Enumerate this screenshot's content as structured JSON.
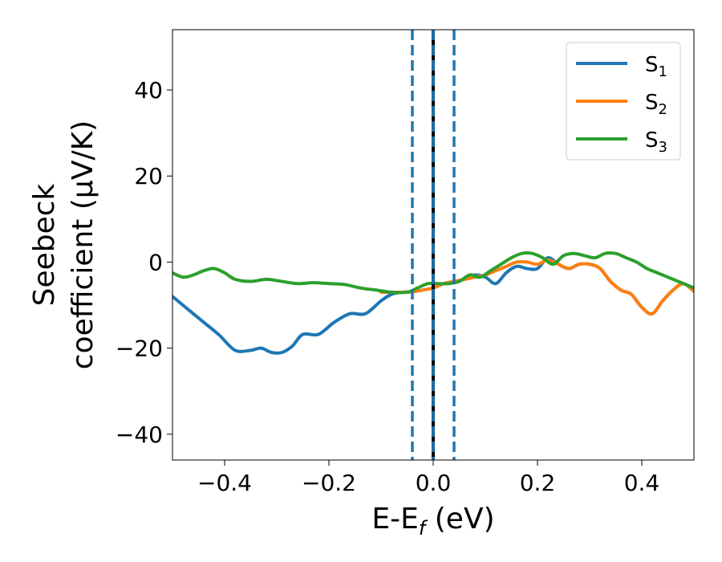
{
  "chart_data": {
    "type": "line",
    "xlabel": {
      "main": "E-E",
      "sub": "f",
      "unit": " (eV)"
    },
    "ylabel": {
      "line1": "Seebeck",
      "line2": "coefficient  (μV/K)"
    },
    "xlim": [
      -0.5,
      0.5
    ],
    "ylim": [
      -46,
      54
    ],
    "xticks": [
      -0.4,
      -0.2,
      0.0,
      0.2,
      0.4
    ],
    "xtick_labels": [
      "−0.4",
      "−0.2",
      "0.0",
      "0.2",
      "0.4"
    ],
    "yticks": [
      -40,
      -20,
      0,
      20,
      40
    ],
    "ytick_labels": [
      "−40",
      "−20",
      "0",
      "20",
      "40"
    ],
    "grid": false,
    "legend_position": "top-right",
    "vlines": [
      {
        "x": -0.04,
        "style": "dashed",
        "color": "#1f77b4"
      },
      {
        "x": 0.0,
        "style": "solid",
        "color": "#000000"
      },
      {
        "x": 0.0,
        "style": "dashed",
        "color": "#1f77b4"
      },
      {
        "x": 0.04,
        "style": "dashed",
        "color": "#1f77b4"
      }
    ],
    "series": [
      {
        "name": "S",
        "subscript": "1",
        "color": "#1f77b4",
        "x": [
          -0.5,
          -0.47,
          -0.44,
          -0.41,
          -0.38,
          -0.35,
          -0.33,
          -0.31,
          -0.29,
          -0.27,
          -0.25,
          -0.22,
          -0.19,
          -0.16,
          -0.13,
          -0.1,
          -0.08,
          -0.06,
          -0.04,
          -0.02,
          0.0,
          0.02,
          0.04,
          0.06,
          0.08,
          0.1,
          0.12,
          0.14,
          0.16,
          0.18,
          0.2,
          0.22,
          0.24,
          0.26,
          0.28,
          0.3,
          0.32,
          0.34,
          0.36,
          0.38,
          0.4,
          0.42,
          0.44,
          0.46,
          0.48,
          0.5
        ],
        "y": [
          -8.0,
          -11.0,
          -14.0,
          -17.0,
          -20.5,
          -20.5,
          -20.0,
          -21.0,
          -21.0,
          -19.5,
          -16.8,
          -16.8,
          -14.0,
          -12.0,
          -12.0,
          -9.0,
          -7.5,
          -7.0,
          -6.9,
          -6.5,
          -6.0,
          -5.0,
          -4.5,
          -4.0,
          -3.0,
          -3.5,
          -5.0,
          -2.5,
          -1.0,
          -1.5,
          -1.5,
          1.0,
          -0.5,
          -1.5,
          -0.5,
          -0.5,
          -1.5,
          -4.5,
          -6.5,
          -7.5,
          -10.5,
          -12.0,
          -9.0,
          -6.5,
          -5.0,
          -6.8
        ]
      },
      {
        "name": "S",
        "subscript": "2",
        "color": "#ff7f0e",
        "x": [
          -0.1,
          -0.08,
          -0.06,
          -0.04,
          -0.02,
          0.0,
          0.02,
          0.04,
          0.06,
          0.08,
          0.1,
          0.12,
          0.14,
          0.16,
          0.18,
          0.2,
          0.22,
          0.24,
          0.26,
          0.28,
          0.3,
          0.32,
          0.34,
          0.36,
          0.38,
          0.4,
          0.42,
          0.44,
          0.46,
          0.48,
          0.5
        ],
        "y": [
          -7.0,
          -7.0,
          -7.0,
          -6.9,
          -6.5,
          -6.0,
          -5.0,
          -4.5,
          -4.0,
          -3.5,
          -3.0,
          -2.0,
          -1.0,
          0.0,
          0.0,
          -0.5,
          0.5,
          -0.5,
          -1.5,
          -0.5,
          -0.5,
          -1.5,
          -4.5,
          -6.5,
          -7.5,
          -10.5,
          -12.0,
          -9.0,
          -6.5,
          -5.0,
          -6.8
        ]
      },
      {
        "name": "S",
        "subscript": "3",
        "color": "#2ca02c",
        "x": [
          -0.5,
          -0.48,
          -0.46,
          -0.44,
          -0.42,
          -0.4,
          -0.38,
          -0.35,
          -0.32,
          -0.29,
          -0.26,
          -0.23,
          -0.2,
          -0.17,
          -0.14,
          -0.11,
          -0.08,
          -0.05,
          -0.03,
          -0.01,
          0.01,
          0.03,
          0.05,
          0.07,
          0.09,
          0.11,
          0.13,
          0.15,
          0.17,
          0.19,
          0.21,
          0.23,
          0.25,
          0.27,
          0.29,
          0.31,
          0.33,
          0.35,
          0.37,
          0.39,
          0.41,
          0.43,
          0.45,
          0.47,
          0.49,
          0.5
        ],
        "y": [
          -2.5,
          -3.5,
          -3.0,
          -2.0,
          -1.5,
          -2.5,
          -4.0,
          -4.5,
          -4.0,
          -4.5,
          -5.0,
          -4.8,
          -5.0,
          -5.2,
          -6.0,
          -6.5,
          -7.0,
          -7.0,
          -6.0,
          -5.0,
          -5.0,
          -5.0,
          -4.5,
          -3.0,
          -3.5,
          -2.0,
          -0.5,
          1.0,
          2.0,
          2.0,
          1.0,
          -0.5,
          1.5,
          2.0,
          1.5,
          1.0,
          2.0,
          2.0,
          1.0,
          0.0,
          -1.5,
          -2.5,
          -3.5,
          -4.5,
          -5.5,
          -6.0
        ]
      }
    ]
  }
}
